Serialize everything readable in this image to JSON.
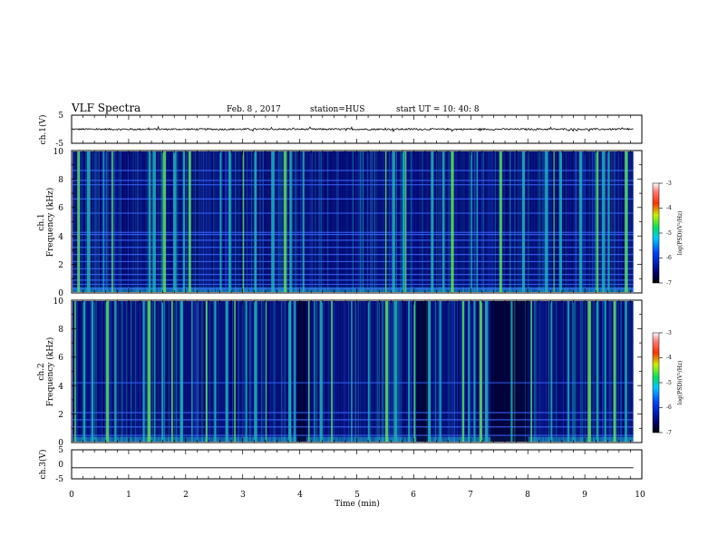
{
  "header": {
    "title": "VLF Spectra",
    "date": "Feb. 8  , 2017",
    "station": "station=HUS",
    "start": "start  UT  =   10: 40: 8"
  },
  "colors": {
    "background": "#000066",
    "stripe_cyan": "#1fb3b8",
    "stripe_green": "#5ee05e",
    "line_blue": "#3a64ff",
    "waveform": "#000000"
  },
  "chart_data": [
    {
      "type": "line",
      "panel": "ch1-waveform",
      "ylabel": "ch.1(V)",
      "ylim": [
        -5,
        5
      ],
      "yticks": [
        "5",
        "-5"
      ],
      "xlim": [
        0,
        10
      ],
      "trace": {
        "level": 0,
        "noise_amplitude": 0.3,
        "end": 9.85
      }
    },
    {
      "type": "heatmap",
      "panel": "ch1-spectrogram",
      "ylabel": "ch.1",
      "ylabel2": "Frequency  (kHz)",
      "ylim": [
        0,
        10
      ],
      "yticks": [
        "0",
        "2",
        "4",
        "6",
        "8",
        "10"
      ],
      "xlim": [
        0,
        10
      ],
      "data_end": 9.85,
      "horizontal_lines_khz": [
        0.3,
        0.6,
        0.9,
        1.3,
        1.7,
        2.2,
        2.7,
        3.2,
        3.7,
        4.1,
        4.25,
        5.6,
        6.6,
        7.6,
        7.9,
        8.6
      ],
      "bright_bursts_min": [
        0.1,
        0.27,
        0.55,
        0.7,
        1.35,
        1.42,
        1.6,
        1.78,
        1.95,
        2.05,
        2.6,
        2.75,
        3.0,
        3.2,
        3.5,
        3.72,
        3.82,
        4.05,
        5.5,
        5.62,
        5.8,
        5.85,
        6.3,
        6.5,
        6.65,
        7.0,
        7.1,
        7.5,
        7.9,
        8.3,
        8.45,
        8.55,
        8.9,
        9.2,
        9.3,
        9.4,
        9.7
      ],
      "colorbar": {
        "label": "log(PSD)(V²/Hz)",
        "range": [
          -7,
          -3
        ],
        "ticks": [
          "-3",
          "-4",
          "-5",
          "-6",
          "-7"
        ]
      }
    },
    {
      "type": "heatmap",
      "panel": "ch2-spectrogram",
      "ylabel": "ch.2",
      "ylabel2": "Frequency  (kHz)",
      "ylim": [
        0,
        10
      ],
      "yticks": [
        "0",
        "2",
        "4",
        "6",
        "8",
        "10"
      ],
      "xlim": [
        0,
        10
      ],
      "data_end": 9.85,
      "horizontal_lines_khz": [
        0.5,
        1.1,
        1.6,
        2.1,
        4.2
      ],
      "bright_bursts_min": [
        0.05,
        0.2,
        0.35,
        0.6,
        0.75,
        1.25,
        1.33,
        1.45,
        1.58,
        1.75,
        1.9,
        2.1,
        2.35,
        2.5,
        2.7,
        2.85,
        3.05,
        3.2,
        3.4,
        3.8,
        3.9,
        4.15,
        4.25,
        4.35,
        4.55,
        4.9,
        5.2,
        5.5,
        5.65,
        5.9,
        6.0,
        6.25,
        6.45,
        6.85,
        6.95,
        7.05,
        7.15,
        7.25,
        7.7,
        8.05,
        8.4,
        8.7,
        9.05,
        9.2,
        9.35,
        9.5,
        9.7
      ],
      "dark_gaps_min": [
        [
          3.95,
          4.12
        ],
        [
          6.05,
          6.25
        ],
        [
          7.35,
          8.0
        ]
      ],
      "colorbar": {
        "label": "log(PSD)(V²/Hz)",
        "range": [
          -7,
          -3
        ],
        "ticks": [
          "-3",
          "-4",
          "-5",
          "-6",
          "-7"
        ]
      }
    },
    {
      "type": "line",
      "panel": "ch3-waveform",
      "ylabel": "ch.3(V)",
      "ylim": [
        -5,
        5
      ],
      "yticks": [
        "5",
        "0",
        "-5"
      ],
      "xlim": [
        0,
        10
      ],
      "trace": {
        "level": -1.2,
        "noise_amplitude": 0,
        "end": 9.85
      }
    }
  ],
  "xaxis": {
    "label": "Time  (min)",
    "ticks": [
      "0",
      "1",
      "2",
      "3",
      "4",
      "5",
      "6",
      "7",
      "8",
      "9",
      "10"
    ]
  }
}
